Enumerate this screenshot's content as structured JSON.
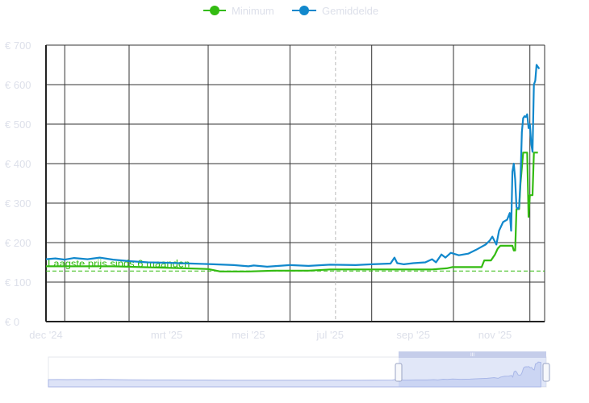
{
  "chart_data": {
    "type": "line",
    "title": "",
    "xlabel": "",
    "ylabel": "",
    "y_unit_prefix": "€ ",
    "ylim": [
      0,
      700
    ],
    "y_ticks": [
      0,
      100,
      200,
      300,
      400,
      500,
      600,
      700
    ],
    "y_tick_labels": [
      "€ 0",
      "€ 100",
      "€ 200",
      "€ 300",
      "€ 400",
      "€ 500",
      "€ 600",
      "€ 700"
    ],
    "xlim": [
      "2024-12-01",
      "2025-12-08"
    ],
    "x_ticks": [
      {
        "date": "2024-12-01",
        "label": "dec '24"
      },
      {
        "date": "2025-03-01",
        "label": "mrt '25"
      },
      {
        "date": "2025-05-01",
        "label": "mei '25"
      },
      {
        "date": "2025-07-01",
        "label": "jul '25"
      },
      {
        "date": "2025-09-01",
        "label": "sep '25"
      },
      {
        "date": "2025-11-01",
        "label": "nov '25"
      }
    ],
    "x_gridlines": [
      "2024-12-15",
      "2025-02-01",
      "2025-04-01",
      "2025-06-01",
      "2025-08-01",
      "2025-10-01",
      "2025-11-27"
    ],
    "grid": true,
    "legend_position": "top-center",
    "colors": {
      "minimum": "#33bb11",
      "average": "#1188cc",
      "reference": "#33bb11",
      "crosshair": "#bbbbbb",
      "grid": "#333333",
      "navigator_fill": "#dde3f7",
      "navigator_line": "#a9b6e6",
      "tick_text": "#dde0ea"
    },
    "series": [
      {
        "name": "Minimum",
        "color": "#33bb11",
        "points": [
          [
            "2024-12-01",
            140
          ],
          [
            "2025-01-20",
            140
          ],
          [
            "2025-02-10",
            138
          ],
          [
            "2025-03-15",
            135
          ],
          [
            "2025-04-01",
            133
          ],
          [
            "2025-04-10",
            127
          ],
          [
            "2025-05-01",
            127
          ],
          [
            "2025-05-20",
            129
          ],
          [
            "2025-06-15",
            129
          ],
          [
            "2025-07-01",
            132
          ],
          [
            "2025-08-01",
            132
          ],
          [
            "2025-09-15",
            132
          ],
          [
            "2025-09-26",
            135
          ],
          [
            "2025-09-30",
            138
          ],
          [
            "2025-10-22",
            138
          ],
          [
            "2025-10-24",
            155
          ],
          [
            "2025-10-29",
            155
          ],
          [
            "2025-11-01",
            170
          ],
          [
            "2025-11-03",
            185
          ],
          [
            "2025-11-05",
            192
          ],
          [
            "2025-11-14",
            192
          ],
          [
            "2025-11-15",
            180
          ],
          [
            "2025-11-16",
            180
          ],
          [
            "2025-11-17",
            285
          ],
          [
            "2025-11-19",
            285
          ],
          [
            "2025-11-20",
            350
          ],
          [
            "2025-11-22",
            428
          ],
          [
            "2025-11-25",
            428
          ],
          [
            "2025-11-26",
            265
          ],
          [
            "2025-11-27",
            320
          ],
          [
            "2025-11-29",
            320
          ],
          [
            "2025-11-30",
            428
          ],
          [
            "2025-12-03",
            428
          ]
        ]
      },
      {
        "name": "Gemiddelde",
        "color": "#1188cc",
        "points": [
          [
            "2024-12-01",
            158
          ],
          [
            "2024-12-08",
            160
          ],
          [
            "2024-12-15",
            157
          ],
          [
            "2024-12-22",
            161
          ],
          [
            "2025-01-01",
            158
          ],
          [
            "2025-01-10",
            162
          ],
          [
            "2025-01-20",
            157
          ],
          [
            "2025-02-01",
            153
          ],
          [
            "2025-02-15",
            150
          ],
          [
            "2025-03-01",
            149
          ],
          [
            "2025-03-20",
            147
          ],
          [
            "2025-04-05",
            145
          ],
          [
            "2025-04-20",
            143
          ],
          [
            "2025-05-01",
            140
          ],
          [
            "2025-05-05",
            142
          ],
          [
            "2025-05-15",
            139
          ],
          [
            "2025-06-01",
            143
          ],
          [
            "2025-06-15",
            141
          ],
          [
            "2025-07-01",
            144
          ],
          [
            "2025-07-20",
            143
          ],
          [
            "2025-08-01",
            145
          ],
          [
            "2025-08-15",
            147
          ],
          [
            "2025-08-18",
            162
          ],
          [
            "2025-08-20",
            148
          ],
          [
            "2025-08-25",
            145
          ],
          [
            "2025-09-01",
            148
          ],
          [
            "2025-09-10",
            150
          ],
          [
            "2025-09-15",
            158
          ],
          [
            "2025-09-18",
            150
          ],
          [
            "2025-09-22",
            170
          ],
          [
            "2025-09-25",
            162
          ],
          [
            "2025-09-29",
            174
          ],
          [
            "2025-10-05",
            168
          ],
          [
            "2025-10-12",
            172
          ],
          [
            "2025-10-18",
            182
          ],
          [
            "2025-10-25",
            195
          ],
          [
            "2025-10-28",
            205
          ],
          [
            "2025-10-30",
            215
          ],
          [
            "2025-11-02",
            195
          ],
          [
            "2025-11-04",
            230
          ],
          [
            "2025-11-07",
            252
          ],
          [
            "2025-11-10",
            258
          ],
          [
            "2025-11-12",
            275
          ],
          [
            "2025-11-13",
            230
          ],
          [
            "2025-11-14",
            380
          ],
          [
            "2025-11-15",
            400
          ],
          [
            "2025-11-16",
            360
          ],
          [
            "2025-11-17",
            290
          ],
          [
            "2025-11-18",
            285
          ],
          [
            "2025-11-19",
            290
          ],
          [
            "2025-11-20",
            360
          ],
          [
            "2025-11-21",
            480
          ],
          [
            "2025-11-22",
            515
          ],
          [
            "2025-11-23",
            520
          ],
          [
            "2025-11-24",
            518
          ],
          [
            "2025-11-25",
            525
          ],
          [
            "2025-11-26",
            490
          ],
          [
            "2025-11-27",
            500
          ],
          [
            "2025-11-28",
            450
          ],
          [
            "2025-11-29",
            430
          ],
          [
            "2025-11-30",
            600
          ],
          [
            "2025-12-01",
            610
          ],
          [
            "2025-12-02",
            650
          ],
          [
            "2025-12-03",
            645
          ],
          [
            "2025-12-04",
            640
          ]
        ]
      }
    ],
    "reference_line": {
      "value": 128,
      "label": "Laagste prijs sinds 6 maanden"
    },
    "crosshair_date": "2025-07-05",
    "navigator_handle_label": "III"
  }
}
